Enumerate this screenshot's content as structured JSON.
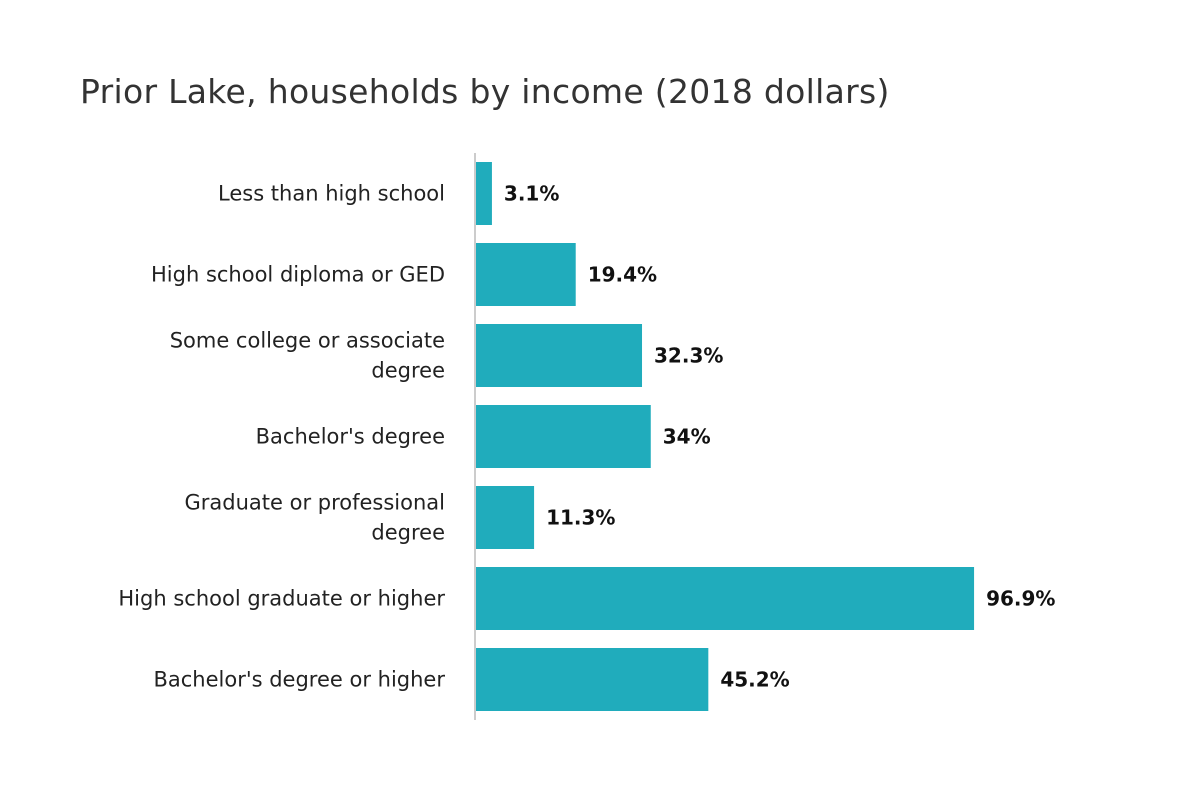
{
  "chart_data": {
    "type": "bar",
    "orientation": "horizontal",
    "title": "Prior Lake, households by income (2018 dollars)",
    "categories": [
      [
        "Less than high school"
      ],
      [
        "High school diploma or GED"
      ],
      [
        "Some college or associate",
        "degree"
      ],
      [
        "Bachelor's degree"
      ],
      [
        "Graduate or professional",
        "degree"
      ],
      [
        "High school graduate or higher"
      ],
      [
        "Bachelor's degree or higher"
      ]
    ],
    "values": [
      3.1,
      19.4,
      32.3,
      34,
      11.3,
      96.9,
      45.2
    ],
    "value_labels": [
      "3.1%",
      "19.4%",
      "32.3%",
      "34%",
      "11.3%",
      "96.9%",
      "45.2%"
    ],
    "xlim": [
      0,
      100
    ],
    "grid": false,
    "legend": "none",
    "bar_color": "#20acbc",
    "axis_color": "#cccccc"
  }
}
